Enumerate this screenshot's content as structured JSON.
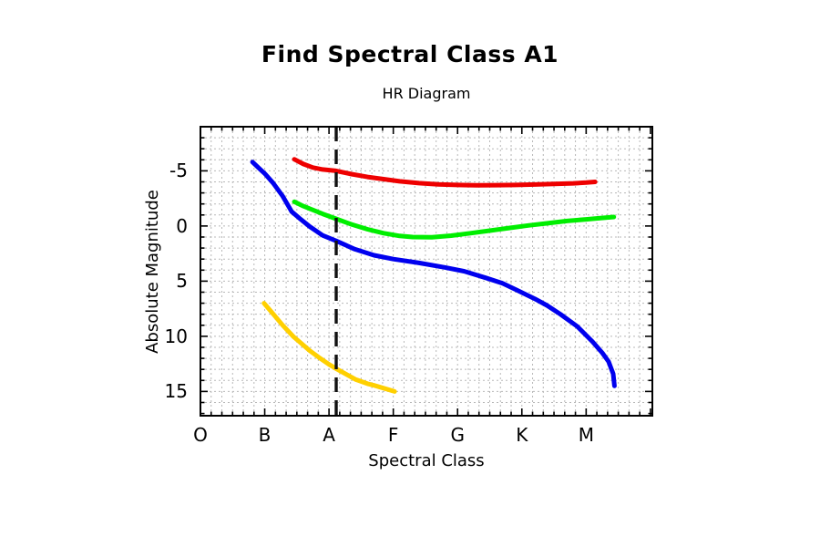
{
  "page": {
    "title": "Find Spectral Class A1"
  },
  "chart_data": {
    "type": "line",
    "title": "HR Diagram",
    "xlabel": "Spectral Class",
    "ylabel": "Absolute Magnitude",
    "x_tick_labels": [
      "O",
      "B",
      "A",
      "F",
      "G",
      "K",
      "M"
    ],
    "y_major_ticks": [
      -5,
      0,
      5,
      10,
      15
    ],
    "y_tick_labels": [
      "-5",
      "0",
      "5",
      "10",
      "15"
    ],
    "xlim": [
      0,
      7.03
    ],
    "ylim_top": -9,
    "ylim_bottom": 17.2,
    "y_axis_inverted": true,
    "grid": true,
    "x_minor_per_major": 6,
    "y_minor_step": 1,
    "legend": "none",
    "colors": {
      "frame": "#000000",
      "grid": "#b8b8b8",
      "marker_line": "#111111",
      "background": "#ffffff"
    },
    "marker_line": {
      "style": "dashed",
      "color": "#111111",
      "x_class_index": 2.112,
      "spans": "full-plot-height"
    },
    "series": [
      {
        "name": "red-curve",
        "color": "#ee0000",
        "points": [
          [
            1.46,
            -6.05
          ],
          [
            1.6,
            -5.62
          ],
          [
            1.75,
            -5.3
          ],
          [
            1.9,
            -5.12
          ],
          [
            2.11,
            -5.0
          ],
          [
            2.35,
            -4.7
          ],
          [
            2.6,
            -4.45
          ],
          [
            2.85,
            -4.25
          ],
          [
            3.1,
            -4.05
          ],
          [
            3.4,
            -3.88
          ],
          [
            3.7,
            -3.77
          ],
          [
            4.0,
            -3.72
          ],
          [
            4.3,
            -3.69
          ],
          [
            4.6,
            -3.7
          ],
          [
            4.9,
            -3.72
          ],
          [
            5.2,
            -3.76
          ],
          [
            5.5,
            -3.81
          ],
          [
            5.8,
            -3.87
          ],
          [
            6.0,
            -3.93
          ],
          [
            6.14,
            -4.0
          ]
        ]
      },
      {
        "name": "green-curve",
        "color": "#00ee00",
        "points": [
          [
            1.46,
            -2.2
          ],
          [
            1.6,
            -1.8
          ],
          [
            1.75,
            -1.45
          ],
          [
            1.9,
            -1.1
          ],
          [
            2.11,
            -0.65
          ],
          [
            2.35,
            -0.15
          ],
          [
            2.6,
            0.3
          ],
          [
            2.85,
            0.65
          ],
          [
            3.1,
            0.9
          ],
          [
            3.3,
            1.0
          ],
          [
            3.6,
            1.02
          ],
          [
            3.9,
            0.88
          ],
          [
            4.2,
            0.65
          ],
          [
            4.5,
            0.42
          ],
          [
            4.8,
            0.18
          ],
          [
            5.1,
            -0.05
          ],
          [
            5.4,
            -0.25
          ],
          [
            5.7,
            -0.45
          ],
          [
            6.0,
            -0.6
          ],
          [
            6.2,
            -0.7
          ],
          [
            6.43,
            -0.82
          ]
        ]
      },
      {
        "name": "blue-curve",
        "color": "#0000ee",
        "points": [
          [
            0.81,
            -5.8
          ],
          [
            0.9,
            -5.3
          ],
          [
            1.0,
            -4.75
          ],
          [
            1.13,
            -3.9
          ],
          [
            1.28,
            -2.7
          ],
          [
            1.42,
            -1.3
          ],
          [
            1.56,
            -0.6
          ],
          [
            1.7,
            0.05
          ],
          [
            1.9,
            0.85
          ],
          [
            2.11,
            1.35
          ],
          [
            2.4,
            2.1
          ],
          [
            2.7,
            2.65
          ],
          [
            3.0,
            3.0
          ],
          [
            3.4,
            3.35
          ],
          [
            3.8,
            3.75
          ],
          [
            4.1,
            4.1
          ],
          [
            4.44,
            4.7
          ],
          [
            4.7,
            5.2
          ],
          [
            4.92,
            5.8
          ],
          [
            5.2,
            6.6
          ],
          [
            5.39,
            7.2
          ],
          [
            5.6,
            8.0
          ],
          [
            5.86,
            9.1
          ],
          [
            6.1,
            10.5
          ],
          [
            6.25,
            11.5
          ],
          [
            6.35,
            12.3
          ],
          [
            6.42,
            13.4
          ],
          [
            6.44,
            14.5
          ]
        ]
      },
      {
        "name": "yellow-curve",
        "color": "#ffd000",
        "points": [
          [
            0.99,
            7.0
          ],
          [
            1.1,
            7.75
          ],
          [
            1.28,
            9.0
          ],
          [
            1.45,
            10.05
          ],
          [
            1.56,
            10.6
          ],
          [
            1.7,
            11.3
          ],
          [
            1.84,
            11.9
          ],
          [
            2.0,
            12.55
          ],
          [
            2.13,
            13.0
          ],
          [
            2.3,
            13.55
          ],
          [
            2.41,
            13.9
          ],
          [
            2.6,
            14.3
          ],
          [
            2.7,
            14.45
          ],
          [
            2.85,
            14.7
          ],
          [
            3.02,
            15.0
          ]
        ]
      }
    ]
  }
}
